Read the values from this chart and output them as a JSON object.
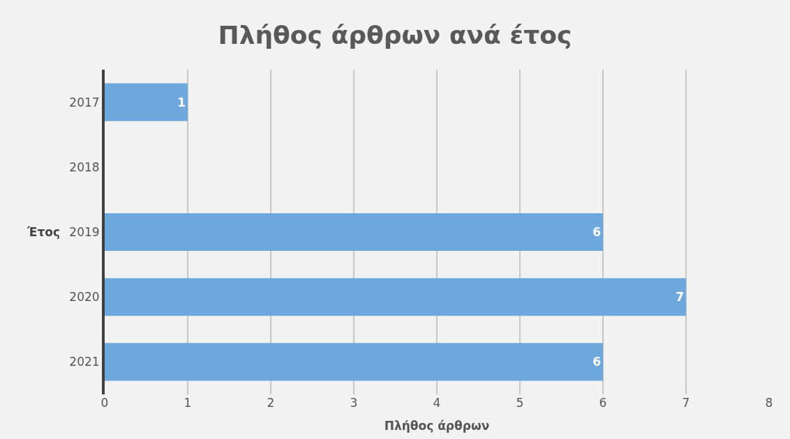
{
  "chart_data": {
    "type": "bar",
    "orientation": "horizontal",
    "title": "Πλήθος άρθρων ανά έτος",
    "xlabel": "Πλήθος άρθρων",
    "ylabel": "Έτος",
    "categories": [
      "2017",
      "2018",
      "2019",
      "2020",
      "2021"
    ],
    "values": [
      1,
      null,
      6,
      7,
      6
    ],
    "color": "#6fa8dc",
    "value_labels": [
      "1",
      null,
      "6",
      "7",
      "6"
    ],
    "xlim": [
      0,
      8
    ],
    "xticks": [
      0,
      1,
      2,
      3,
      4,
      5,
      6,
      7,
      8
    ],
    "grid": "x"
  }
}
